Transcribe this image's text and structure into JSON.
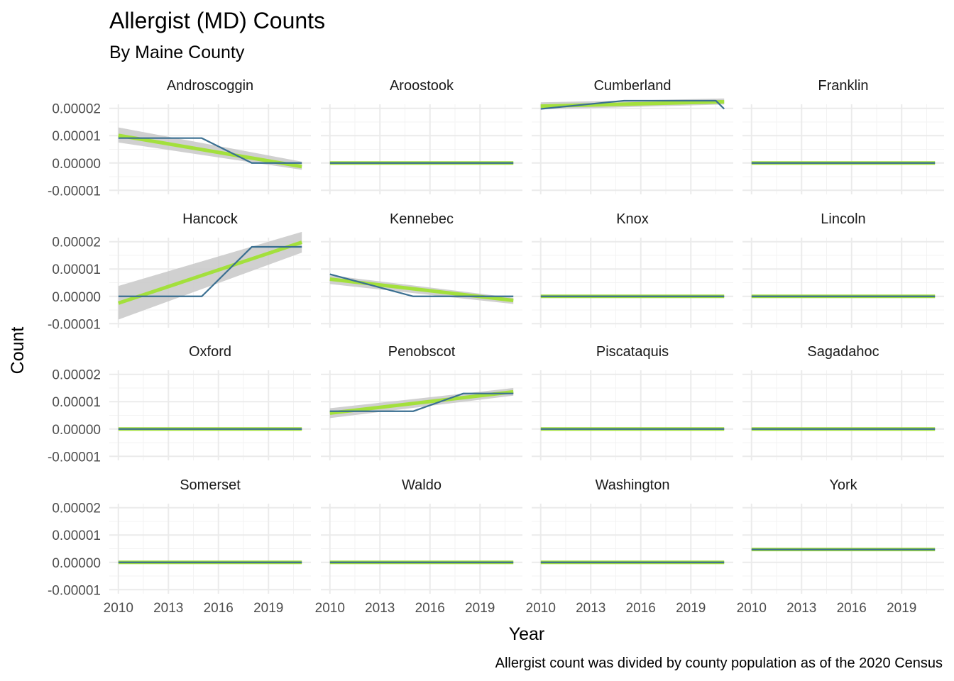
{
  "chart_data": {
    "type": "line",
    "title": "Allergist (MD) Counts",
    "subtitle": "By Maine County",
    "xlabel": "Year",
    "ylabel": "Count",
    "caption": "Allergist count was divided by county population as of the 2020 Census",
    "xlim": [
      2010,
      2021
    ],
    "ylim": [
      -1e-05,
      2e-05
    ],
    "x_ticks": [
      2010,
      2013,
      2016,
      2019
    ],
    "x_tick_labels": [
      "2010",
      "2013",
      "2016",
      "2019"
    ],
    "y_ticks": [
      -1e-05,
      0,
      1e-05,
      2e-05
    ],
    "y_tick_labels": [
      "-0.00001",
      "0.00000",
      "0.00001",
      "0.00002"
    ],
    "grid": true,
    "facet_layout": {
      "rows": 4,
      "cols": 4
    },
    "colors": {
      "line": "#3a6f91",
      "trend": "#a3e03c",
      "band": "#c8c8c8",
      "grid": "#ebebeb"
    },
    "facets": [
      {
        "name": "Androscoggin",
        "x": [
          2010,
          2015,
          2018,
          2021
        ],
        "y": [
          9.1e-06,
          9.1e-06,
          0,
          0
        ],
        "trend": {
          "x": [
            2010,
            2021
          ],
          "y": [
            1.01e-05,
            -1.3e-06
          ]
        },
        "band": {
          "upper": [
            1.3e-05,
            5e-07
          ],
          "lower": [
            7.5e-06,
            -2.5e-06
          ]
        }
      },
      {
        "name": "Aroostook",
        "x": [
          2010,
          2021
        ],
        "y": [
          0,
          0
        ],
        "trend": {
          "x": [
            2010,
            2021
          ],
          "y": [
            0,
            0
          ]
        },
        "band": {
          "upper": [
            2e-07,
            2e-07
          ],
          "lower": [
            -2e-07,
            -2e-07
          ]
        }
      },
      {
        "name": "Cumberland",
        "x": [
          2010,
          2015,
          2020.5,
          2021
        ],
        "y": [
          1.98e-05,
          2.28e-05,
          2.28e-05,
          1.98e-05
        ],
        "trend": {
          "x": [
            2010,
            2021
          ],
          "y": [
            2.08e-05,
            2.24e-05
          ]
        },
        "band": {
          "upper": [
            2.22e-05,
            2.36e-05
          ],
          "lower": [
            1.96e-05,
            2.14e-05
          ]
        }
      },
      {
        "name": "Franklin",
        "x": [
          2010,
          2021
        ],
        "y": [
          0,
          0
        ],
        "trend": {
          "x": [
            2010,
            2021
          ],
          "y": [
            0,
            0
          ]
        },
        "band": {
          "upper": [
            2e-07,
            2e-07
          ],
          "lower": [
            -2e-07,
            -2e-07
          ]
        }
      },
      {
        "name": "Hancock",
        "x": [
          2010,
          2015,
          2018,
          2021
        ],
        "y": [
          0,
          0,
          1.81e-05,
          1.81e-05
        ],
        "trend": {
          "x": [
            2010,
            2021
          ],
          "y": [
            -2.5e-06,
            1.98e-05
          ]
        },
        "band": {
          "upper": [
            3.8e-06,
            2.36e-05
          ],
          "lower": [
            -8.5e-06,
            1.6e-05
          ]
        }
      },
      {
        "name": "Kennebec",
        "x": [
          2010,
          2015,
          2021
        ],
        "y": [
          8.1e-06,
          0,
          0
        ],
        "trend": {
          "x": [
            2010,
            2021
          ],
          "y": [
            6.3e-06,
            -1.5e-06
          ]
        },
        "band": {
          "upper": [
            7.7e-06,
            -5e-07
          ],
          "lower": [
            4.5e-06,
            -2.8e-06
          ]
        }
      },
      {
        "name": "Knox",
        "x": [
          2010,
          2021
        ],
        "y": [
          0,
          0
        ],
        "trend": {
          "x": [
            2010,
            2021
          ],
          "y": [
            0,
            0
          ]
        },
        "band": {
          "upper": [
            2e-07,
            2e-07
          ],
          "lower": [
            -2e-07,
            -2e-07
          ]
        }
      },
      {
        "name": "Lincoln",
        "x": [
          2010,
          2021
        ],
        "y": [
          0,
          0
        ],
        "trend": {
          "x": [
            2010,
            2021
          ],
          "y": [
            0,
            0
          ]
        },
        "band": {
          "upper": [
            2e-07,
            2e-07
          ],
          "lower": [
            -2e-07,
            -2e-07
          ]
        }
      },
      {
        "name": "Oxford",
        "x": [
          2010,
          2021
        ],
        "y": [
          0,
          0
        ],
        "trend": {
          "x": [
            2010,
            2021
          ],
          "y": [
            0,
            0
          ]
        },
        "band": {
          "upper": [
            2e-07,
            2e-07
          ],
          "lower": [
            -2e-07,
            -2e-07
          ]
        }
      },
      {
        "name": "Penobscot",
        "x": [
          2010,
          2015,
          2018,
          2021
        ],
        "y": [
          6.5e-06,
          6.5e-06,
          1.3e-05,
          1.3e-05
        ],
        "trend": {
          "x": [
            2010,
            2021
          ],
          "y": [
            5.8e-06,
            1.36e-05
          ]
        },
        "band": {
          "upper": [
            7.6e-06,
            1.5e-05
          ],
          "lower": [
            4e-06,
            1.22e-05
          ]
        }
      },
      {
        "name": "Piscataquis",
        "x": [
          2010,
          2021
        ],
        "y": [
          0,
          0
        ],
        "trend": {
          "x": [
            2010,
            2021
          ],
          "y": [
            0,
            0
          ]
        },
        "band": {
          "upper": [
            2e-07,
            2e-07
          ],
          "lower": [
            -2e-07,
            -2e-07
          ]
        }
      },
      {
        "name": "Sagadahoc",
        "x": [
          2010,
          2021
        ],
        "y": [
          0,
          0
        ],
        "trend": {
          "x": [
            2010,
            2021
          ],
          "y": [
            0,
            0
          ]
        },
        "band": {
          "upper": [
            2e-07,
            2e-07
          ],
          "lower": [
            -2e-07,
            -2e-07
          ]
        }
      },
      {
        "name": "Somerset",
        "x": [
          2010,
          2021
        ],
        "y": [
          0,
          0
        ],
        "trend": {
          "x": [
            2010,
            2021
          ],
          "y": [
            0,
            0
          ]
        },
        "band": {
          "upper": [
            2e-07,
            2e-07
          ],
          "lower": [
            -2e-07,
            -2e-07
          ]
        }
      },
      {
        "name": "Waldo",
        "x": [
          2010,
          2021
        ],
        "y": [
          0,
          0
        ],
        "trend": {
          "x": [
            2010,
            2021
          ],
          "y": [
            0,
            0
          ]
        },
        "band": {
          "upper": [
            2e-07,
            2e-07
          ],
          "lower": [
            -2e-07,
            -2e-07
          ]
        }
      },
      {
        "name": "Washington",
        "x": [
          2010,
          2021
        ],
        "y": [
          0,
          0
        ],
        "trend": {
          "x": [
            2010,
            2021
          ],
          "y": [
            0,
            0
          ]
        },
        "band": {
          "upper": [
            2e-07,
            2e-07
          ],
          "lower": [
            -2e-07,
            -2e-07
          ]
        }
      },
      {
        "name": "York",
        "x": [
          2010,
          2021
        ],
        "y": [
          4.7e-06,
          4.7e-06
        ],
        "trend": {
          "x": [
            2010,
            2021
          ],
          "y": [
            4.7e-06,
            4.7e-06
          ]
        },
        "band": {
          "upper": [
            4.9e-06,
            4.9e-06
          ],
          "lower": [
            4.5e-06,
            4.5e-06
          ]
        }
      }
    ]
  }
}
